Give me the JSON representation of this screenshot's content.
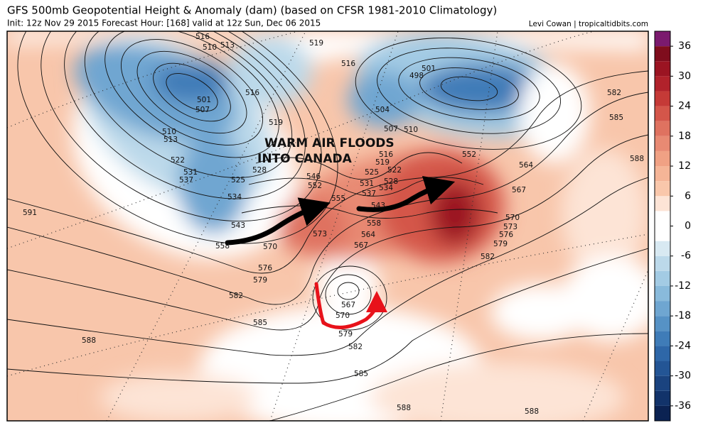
{
  "header": {
    "title": "GFS 500mb Geopotential Height & Anomaly (dam) (based on CFSR 1981-2010 Climatology)",
    "subtitle": "Init: 12z Nov 29 2015   Forecast Hour: [168]   valid at 12z Sun, Dec 06 2015",
    "credit": "Levi Cowan | tropicaltidbits.com"
  },
  "annotation": "WARM AIR FLOODS\nINTO CANADA",
  "colorbar": {
    "lim": [
      -39,
      39
    ],
    "step": 3,
    "ticks": [
      36,
      30,
      24,
      18,
      12,
      6,
      0,
      -6,
      -12,
      -18,
      -24,
      -30,
      -36
    ],
    "colors": [
      "#0b2252",
      "#12336a",
      "#1a437f",
      "#235595",
      "#2e67a8",
      "#3f7cb8",
      "#5692c5",
      "#6fa6d1",
      "#89badb",
      "#a3cbe4",
      "#bcd9ea",
      "#d8e9f2",
      "#ffffff",
      "#ffffff",
      "#fde4d6",
      "#f9c7ab",
      "#f5b597",
      "#f0a184",
      "#e88a73",
      "#df7260",
      "#d4564a",
      "#c53a37",
      "#b1222b",
      "#9b1422",
      "#7f0d1d",
      "#7b1a6e"
    ]
  },
  "contour_labels": [
    516,
    510,
    513,
    519,
    516,
    501,
    507,
    510,
    513,
    519,
    522,
    531,
    537,
    525,
    534,
    543,
    558,
    591,
    588,
    582,
    585,
    579,
    576,
    570,
    573,
    564,
    567,
    552,
    546,
    555,
    537,
    531,
    525,
    519,
    516,
    504,
    507,
    510,
    498,
    501,
    516,
    552,
    564,
    567,
    570,
    573,
    576,
    579,
    582,
    582,
    585,
    588,
    567,
    570,
    579,
    582,
    585,
    588,
    588,
    528,
    534,
    522,
    558,
    543,
    528
  ]
}
